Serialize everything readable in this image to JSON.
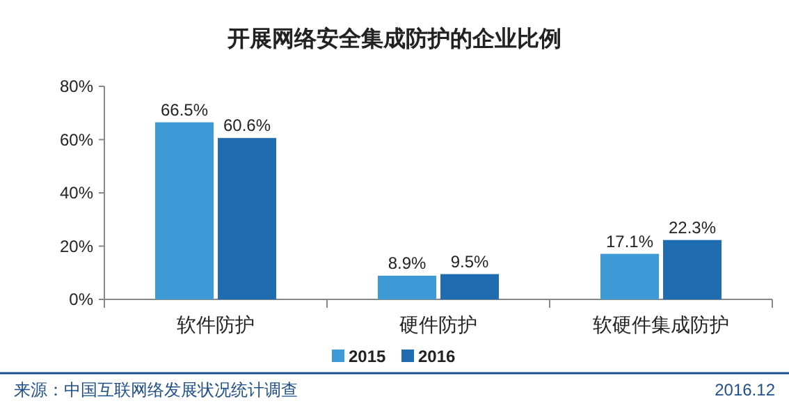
{
  "chart_data": {
    "type": "bar",
    "title": "开展网络安全集成防护的企业比例",
    "categories": [
      "软件防护",
      "硬件防护",
      "软硬件集成防护"
    ],
    "series": [
      {
        "name": "2015",
        "color": "#3d9ad6",
        "values": [
          66.5,
          8.9,
          17.1
        ]
      },
      {
        "name": "2016",
        "color": "#1f6cb0",
        "values": [
          60.6,
          9.5,
          22.3
        ]
      }
    ],
    "ylim": [
      0,
      80
    ],
    "yticks": [
      {
        "value": 0,
        "label": "0%"
      },
      {
        "value": 20,
        "label": "20%"
      },
      {
        "value": 40,
        "label": "40%"
      },
      {
        "value": 60,
        "label": "60%"
      },
      {
        "value": 80,
        "label": "80%"
      }
    ],
    "value_labels": [
      [
        "66.5%",
        "8.9%",
        "17.1%"
      ],
      [
        "60.6%",
        "9.5%",
        "22.3%"
      ]
    ],
    "legend": "bottom",
    "grid": false,
    "annotations": [
      "来源：中国互联网络发展状况统计调查",
      "2016.12"
    ]
  }
}
